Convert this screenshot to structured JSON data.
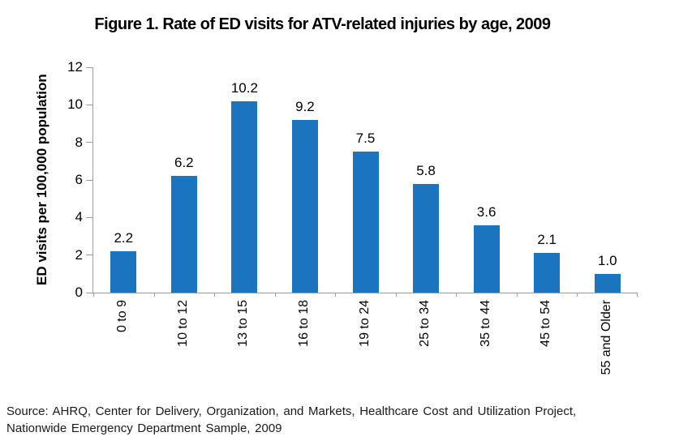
{
  "chart_data": {
    "type": "bar",
    "title": "Figure 1. Rate of ED visits for ATV-related injuries by age, 2009",
    "xlabel": "",
    "ylabel": "ED visits per 100,000 population",
    "categories": [
      "0 to 9",
      "10 to 12",
      "13 to 15",
      "16 to 18",
      "19 to 24",
      "25 to 34",
      "35 to 44",
      "45 to 54",
      "55 and Older"
    ],
    "values": [
      2.2,
      6.2,
      10.2,
      9.2,
      7.5,
      5.8,
      3.6,
      2.1,
      1.0
    ],
    "ylim": [
      0,
      12
    ],
    "yticks": [
      0,
      2,
      4,
      6,
      8,
      10,
      12
    ],
    "grid": false,
    "legend": "none",
    "data_labels": true,
    "bar_color": "#1B74BE",
    "axis_color": "#9C9C9C",
    "x_label_rotation": "90-degrees-bottom-to-top"
  },
  "source": {
    "lines": [
      "Source: AHRQ, Center for Delivery, Organization, and Markets, Healthcare Cost and Utilization Project,",
      "Nationwide Emergency Department Sample, 2009"
    ]
  }
}
